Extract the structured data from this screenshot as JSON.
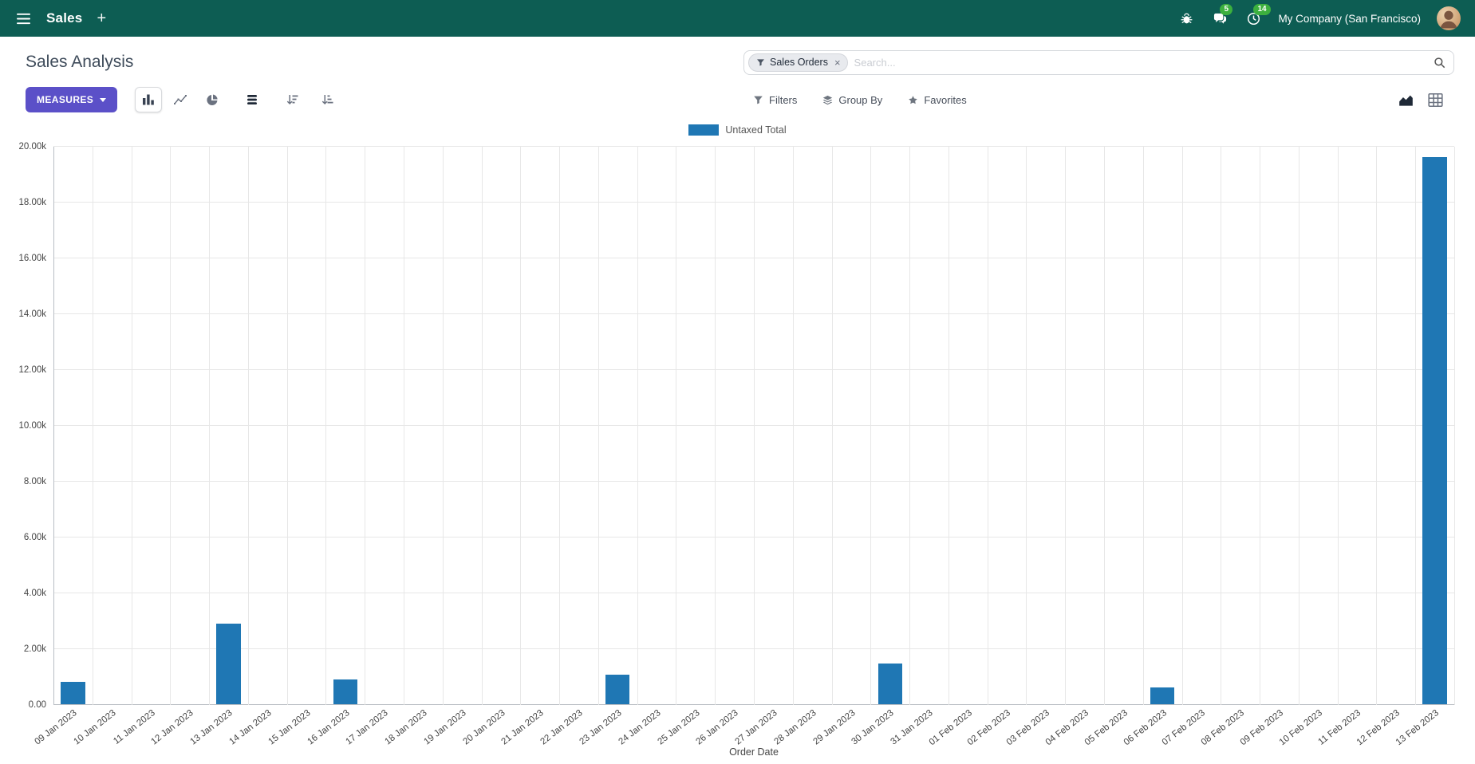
{
  "colors": {
    "navbar_bg": "#0d5d53",
    "primary_button": "#5b50c8",
    "bar_blue": "#1f77b4",
    "badge_green": "#3cb03e"
  },
  "navbar": {
    "app_name": "Sales",
    "plus": "+",
    "messages_badge": "5",
    "activities_badge": "14",
    "company": "My Company (San Francisco)"
  },
  "control_panel": {
    "title": "Sales Analysis",
    "measures_label": "MEASURES",
    "filters_label": "Filters",
    "group_by_label": "Group By",
    "favorites_label": "Favorites",
    "search": {
      "facet_label": "Sales Orders",
      "facet_remove": "×",
      "placeholder": "Search..."
    }
  },
  "chart_data": {
    "type": "bar",
    "title": "",
    "legend": [
      {
        "label": "Untaxed Total",
        "color": "#1f77b4"
      }
    ],
    "legend_position": "top",
    "grid": true,
    "xlabel": "Order Date",
    "ylabel": "",
    "ylim": [
      0,
      20000
    ],
    "ytick_labels": [
      "0.00",
      "2.00k",
      "4.00k",
      "6.00k",
      "8.00k",
      "10.00k",
      "12.00k",
      "14.00k",
      "16.00k",
      "18.00k",
      "20.00k"
    ],
    "categories": [
      "09 Jan 2023",
      "10 Jan 2023",
      "11 Jan 2023",
      "12 Jan 2023",
      "13 Jan 2023",
      "14 Jan 2023",
      "15 Jan 2023",
      "16 Jan 2023",
      "17 Jan 2023",
      "18 Jan 2023",
      "19 Jan 2023",
      "20 Jan 2023",
      "21 Jan 2023",
      "22 Jan 2023",
      "23 Jan 2023",
      "24 Jan 2023",
      "25 Jan 2023",
      "26 Jan 2023",
      "27 Jan 2023",
      "28 Jan 2023",
      "29 Jan 2023",
      "30 Jan 2023",
      "31 Jan 2023",
      "01 Feb 2023",
      "02 Feb 2023",
      "03 Feb 2023",
      "04 Feb 2023",
      "05 Feb 2023",
      "06 Feb 2023",
      "07 Feb 2023",
      "08 Feb 2023",
      "09 Feb 2023",
      "10 Feb 2023",
      "11 Feb 2023",
      "12 Feb 2023",
      "13 Feb 2023"
    ],
    "values": [
      800,
      0,
      0,
      0,
      2900,
      0,
      0,
      900,
      0,
      0,
      0,
      0,
      0,
      0,
      1050,
      0,
      0,
      0,
      0,
      0,
      0,
      1450,
      0,
      0,
      0,
      0,
      0,
      0,
      600,
      0,
      0,
      0,
      0,
      0,
      0,
      19600
    ]
  }
}
